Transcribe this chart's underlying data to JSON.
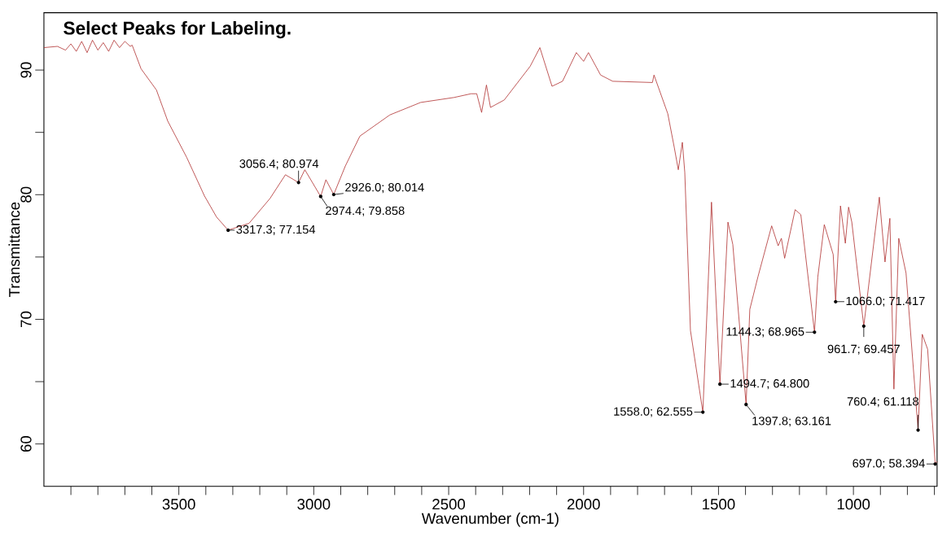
{
  "chart_data": {
    "type": "line",
    "title": "Select Peaks for Labeling.",
    "xlabel": "Wavenumber (cm-1)",
    "ylabel": "Transmittance",
    "color": "#b03030",
    "x": [
      4000,
      3950,
      3920,
      3900,
      3880,
      3860,
      3840,
      3820,
      3800,
      3780,
      3760,
      3740,
      3720,
      3700,
      3680,
      3673,
      3640,
      3583,
      3541,
      3471,
      3405,
      3360,
      3317.3,
      3240,
      3162,
      3105,
      3056.4,
      3033,
      2974.4,
      2955,
      2926.0,
      2883,
      2829,
      2718,
      2604,
      2480,
      2417,
      2396,
      2378,
      2360,
      2345,
      2294,
      2198,
      2162,
      2117,
      2078,
      2027,
      2000,
      1982,
      1937,
      1892,
      1745,
      1739,
      1688,
      1664,
      1649,
      1634,
      1625,
      1604,
      1558.0,
      1526,
      1494.7,
      1465,
      1447,
      1397.8,
      1384,
      1354,
      1303,
      1279,
      1267,
      1255,
      1216,
      1195,
      1144.3,
      1132,
      1108,
      1075,
      1066.0,
      1048,
      1030,
      1018,
      1006,
      961.7,
      904,
      883,
      865,
      850,
      832,
      805,
      760.4,
      745,
      725,
      697.0,
      690
    ],
    "values": [
      91.8,
      91.9,
      91.6,
      92.1,
      91.5,
      92.3,
      91.4,
      92.4,
      91.6,
      92.2,
      91.5,
      92.4,
      91.8,
      92.3,
      91.9,
      92.0,
      90.1,
      88.4,
      85.9,
      83.0,
      79.9,
      78.2,
      77.154,
      77.7,
      79.7,
      81.6,
      80.974,
      82.0,
      79.858,
      81.2,
      80.014,
      82.3,
      84.7,
      86.4,
      87.4,
      87.8,
      88.1,
      88.1,
      86.6,
      88.8,
      87.0,
      87.6,
      90.3,
      91.8,
      88.7,
      89.1,
      91.4,
      90.7,
      91.4,
      89.6,
      89.1,
      89.0,
      89.6,
      86.5,
      83.8,
      82.0,
      84.2,
      81.8,
      69.1,
      62.555,
      79.4,
      64.8,
      77.8,
      76.0,
      63.161,
      70.8,
      73.4,
      77.5,
      75.9,
      76.5,
      74.9,
      78.8,
      78.4,
      68.965,
      73.4,
      77.6,
      75.2,
      71.417,
      79.1,
      76.1,
      79.0,
      77.8,
      69.457,
      79.8,
      74.6,
      78.1,
      64.4,
      76.5,
      73.7,
      61.118,
      68.8,
      67.6,
      58.394,
      58.6
    ],
    "xlim": [
      4000,
      690
    ],
    "ylim": [
      56.6,
      94.6
    ],
    "xticks": [
      {
        "value": 3900,
        "label": null
      },
      {
        "value": 3800,
        "label": null
      },
      {
        "value": 3700,
        "label": null
      },
      {
        "value": 3600,
        "label": null
      },
      3500,
      {
        "value": 3400,
        "label": null
      },
      {
        "value": 3300,
        "label": null
      },
      {
        "value": 3200,
        "label": null
      },
      {
        "value": 3100,
        "label": null
      },
      3000,
      {
        "value": 2900,
        "label": null
      },
      {
        "value": 2800,
        "label": null
      },
      {
        "value": 2700,
        "label": null
      },
      {
        "value": 2600,
        "label": null
      },
      2500,
      {
        "value": 2400,
        "label": null
      },
      {
        "value": 2300,
        "label": null
      },
      {
        "value": 2200,
        "label": null
      },
      {
        "value": 2100,
        "label": null
      },
      2000,
      {
        "value": 1900,
        "label": null
      },
      {
        "value": 1800,
        "label": null
      },
      {
        "value": 1700,
        "label": null
      },
      {
        "value": 1600,
        "label": null
      },
      1500,
      {
        "value": 1400,
        "label": null
      },
      {
        "value": 1300,
        "label": null
      },
      {
        "value": 1200,
        "label": null
      },
      {
        "value": 1100,
        "label": null
      },
      1000,
      {
        "value": 900,
        "label": null
      },
      {
        "value": 800,
        "label": null
      },
      {
        "value": 700,
        "label": null
      }
    ],
    "yticks": [
      60,
      {
        "value": 65,
        "label": null
      },
      70,
      {
        "value": 75,
        "label": null
      },
      80,
      {
        "value": 85,
        "label": null
      },
      90
    ],
    "annotations": [
      {
        "text": "3317.3; 77.154",
        "x": 3317.3,
        "y": 77.154
      },
      {
        "text": "3056.4; 80.974",
        "x": 3056.4,
        "y": 80.974
      },
      {
        "text": "2974.4; 79.858",
        "x": 2974.4,
        "y": 79.858
      },
      {
        "text": "2926.0; 80.014",
        "x": 2926.0,
        "y": 80.014
      },
      {
        "text": "1558.0; 62.555",
        "x": 1558.0,
        "y": 62.555
      },
      {
        "text": "1494.7; 64.800",
        "x": 1494.7,
        "y": 64.8
      },
      {
        "text": "1397.8; 63.161",
        "x": 1397.8,
        "y": 63.161
      },
      {
        "text": "1144.3; 68.965",
        "x": 1144.3,
        "y": 68.965
      },
      {
        "text": "1066.0; 71.417",
        "x": 1066.0,
        "y": 71.417
      },
      {
        "text": "961.7; 69.457",
        "x": 961.7,
        "y": 69.457
      },
      {
        "text": "760.4; 61.118",
        "x": 760.4,
        "y": 61.118
      },
      {
        "text": "697.0; 58.394",
        "x": 697.0,
        "y": 58.394
      }
    ]
  }
}
